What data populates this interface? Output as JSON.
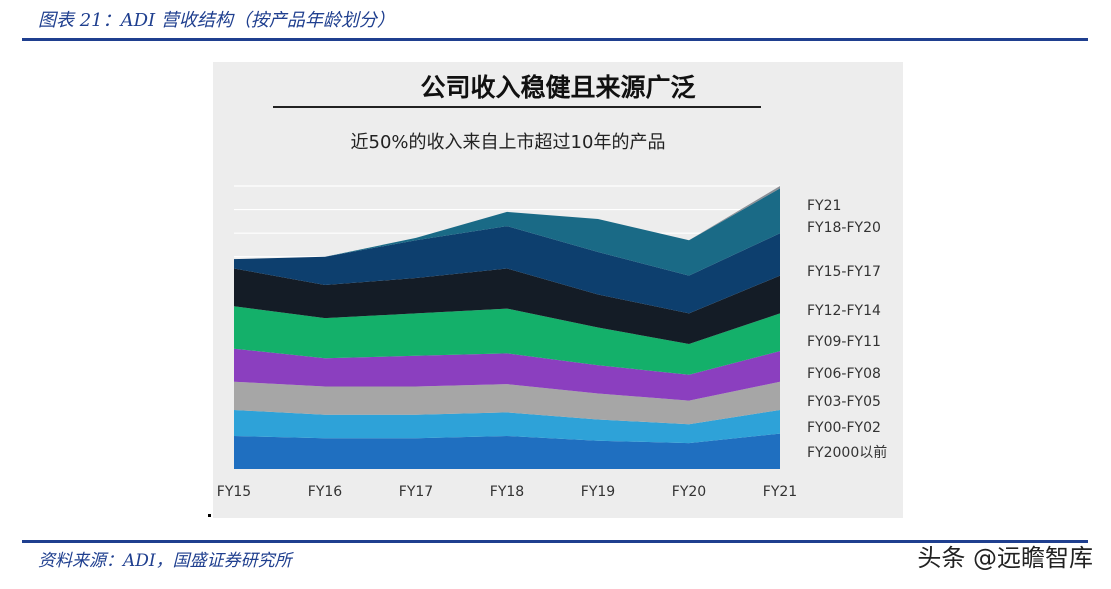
{
  "caption": "图表 21：ADI 营收结构（按产品年龄划分）",
  "source": "资料来源：ADI，国盛证券研究所",
  "watermark": "头条 @远瞻智库",
  "chart_data": {
    "type": "area",
    "title": "公司收入稳健且来源广泛",
    "subtitle": "近50%的收入来自上市超过10年的产品",
    "categories": [
      "FY15",
      "FY16",
      "FY17",
      "FY18",
      "FY19",
      "FY20",
      "FY21"
    ],
    "stacked": true,
    "grid": true,
    "legend_position": "right",
    "y_range": [
      0,
      12
    ],
    "series": [
      {
        "name": "FY2000以前",
        "color": "#1f6fc0",
        "values": [
          1.4,
          1.3,
          1.3,
          1.4,
          1.2,
          1.1,
          1.5
        ]
      },
      {
        "name": "FY00-FY02",
        "color": "#2ea2d8",
        "values": [
          1.1,
          1.0,
          1.0,
          1.0,
          0.9,
          0.8,
          1.0
        ]
      },
      {
        "name": "FY03-FY05",
        "color": "#a6a6a6",
        "values": [
          1.2,
          1.2,
          1.2,
          1.2,
          1.1,
          1.0,
          1.2
        ]
      },
      {
        "name": "FY06-FY08",
        "color": "#8b3fbf",
        "values": [
          1.4,
          1.2,
          1.3,
          1.3,
          1.2,
          1.1,
          1.3
        ]
      },
      {
        "name": "FY09-FY11",
        "color": "#14b06a",
        "values": [
          1.8,
          1.7,
          1.8,
          1.9,
          1.6,
          1.3,
          1.6
        ]
      },
      {
        "name": "FY12-FY14",
        "color": "#141c26",
        "values": [
          1.6,
          1.4,
          1.5,
          1.7,
          1.4,
          1.3,
          1.6
        ]
      },
      {
        "name": "FY15-FY17",
        "color": "#0d3f6e",
        "values": [
          0.4,
          1.2,
          1.6,
          1.8,
          1.8,
          1.6,
          1.8
        ]
      },
      {
        "name": "FY18-FY20",
        "color": "#1a6a86",
        "values": [
          0.0,
          0.0,
          0.1,
          0.6,
          1.4,
          1.5,
          1.9
        ]
      },
      {
        "name": "FY21",
        "color": "#8a8f96",
        "values": [
          0.0,
          0.0,
          0.0,
          0.0,
          0.0,
          0.0,
          0.1
        ]
      }
    ]
  }
}
